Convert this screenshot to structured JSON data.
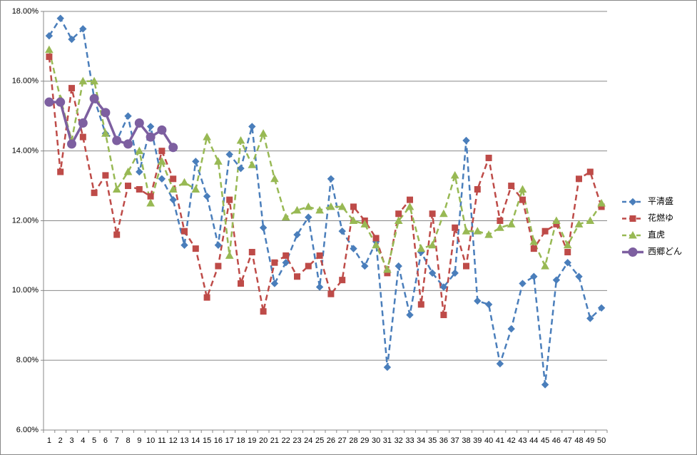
{
  "chart_data": {
    "type": "line",
    "categories": [
      "1",
      "2",
      "3",
      "4",
      "5",
      "6",
      "7",
      "8",
      "9",
      "10",
      "11",
      "12",
      "13",
      "14",
      "15",
      "16",
      "17",
      "18",
      "19",
      "20",
      "21",
      "22",
      "23",
      "24",
      "25",
      "26",
      "27",
      "28",
      "29",
      "30",
      "31",
      "32",
      "33",
      "34",
      "35",
      "36",
      "37",
      "38",
      "39",
      "40",
      "41",
      "42",
      "43",
      "44",
      "45",
      "46",
      "47",
      "48",
      "49",
      "50"
    ],
    "series": [
      {
        "name": "平清盛",
        "color": "#4a7ebb",
        "marker": "diamond",
        "line_style": "dashed",
        "values": [
          17.3,
          17.8,
          17.2,
          17.5,
          15.5,
          14.5,
          14.3,
          15.0,
          13.4,
          14.7,
          13.2,
          12.6,
          11.3,
          13.7,
          12.7,
          11.3,
          13.9,
          13.5,
          14.7,
          11.8,
          10.2,
          10.8,
          11.6,
          12.1,
          10.1,
          13.2,
          11.7,
          11.2,
          10.7,
          11.4,
          7.8,
          10.7,
          9.3,
          11.1,
          10.5,
          10.1,
          10.5,
          14.3,
          9.7,
          9.6,
          7.9,
          8.9,
          10.2,
          10.4,
          7.3,
          10.3,
          10.8,
          10.4,
          9.2,
          9.5
        ]
      },
      {
        "name": "花燃ゆ",
        "color": "#be4b48",
        "marker": "square",
        "line_style": "dashed",
        "values": [
          16.7,
          13.4,
          15.8,
          14.4,
          12.8,
          13.3,
          11.6,
          13.0,
          12.9,
          12.7,
          14.0,
          13.2,
          11.7,
          11.2,
          9.8,
          10.7,
          12.6,
          10.2,
          11.1,
          9.4,
          10.8,
          11.0,
          10.4,
          10.7,
          11.0,
          9.9,
          10.3,
          12.4,
          12.0,
          11.5,
          10.5,
          12.2,
          12.6,
          9.6,
          12.2,
          9.3,
          11.8,
          10.7,
          12.9,
          13.8,
          12.0,
          13.0,
          12.6,
          11.2,
          11.7,
          11.9,
          11.1,
          13.2,
          13.4,
          12.4
        ]
      },
      {
        "name": "直虎",
        "color": "#98b954",
        "marker": "triangle",
        "line_style": "dashed",
        "values": [
          16.9,
          15.5,
          14.3,
          16.0,
          16.0,
          14.5,
          12.9,
          13.4,
          14.0,
          12.5,
          13.7,
          12.9,
          13.1,
          12.9,
          14.4,
          13.7,
          11.0,
          14.3,
          13.6,
          14.5,
          13.2,
          12.1,
          12.3,
          12.4,
          12.3,
          12.4,
          12.4,
          12.0,
          11.9,
          11.3,
          10.6,
          12.0,
          12.4,
          11.2,
          11.3,
          12.2,
          13.3,
          11.7,
          11.7,
          11.6,
          11.8,
          11.9,
          12.9,
          11.4,
          10.7,
          12.0,
          11.3,
          11.9,
          12.0,
          12.5
        ]
      },
      {
        "name": "西郷どん",
        "color": "#7d5fa0",
        "marker": "circle",
        "line_style": "solid",
        "values": [
          15.4,
          15.4,
          14.2,
          14.8,
          15.5,
          15.1,
          14.3,
          14.2,
          14.8,
          14.4,
          14.6,
          14.1,
          null,
          null,
          null,
          null,
          null,
          null,
          null,
          null,
          null,
          null,
          null,
          null,
          null,
          null,
          null,
          null,
          null,
          null,
          null,
          null,
          null,
          null,
          null,
          null,
          null,
          null,
          null,
          null,
          null,
          null,
          null,
          null,
          null,
          null,
          null,
          null,
          null,
          null
        ]
      }
    ],
    "ylim": [
      6,
      18
    ],
    "yticks": [
      {
        "value": 6,
        "label": "6.00%"
      },
      {
        "value": 8,
        "label": "8.00%"
      },
      {
        "value": 10,
        "label": "10.00%"
      },
      {
        "value": 12,
        "label": "12.00%"
      },
      {
        "value": 14,
        "label": "14.00%"
      },
      {
        "value": 16,
        "label": "16.00%"
      },
      {
        "value": 18,
        "label": "18.00%"
      }
    ],
    "grid": true,
    "legend": "right"
  }
}
